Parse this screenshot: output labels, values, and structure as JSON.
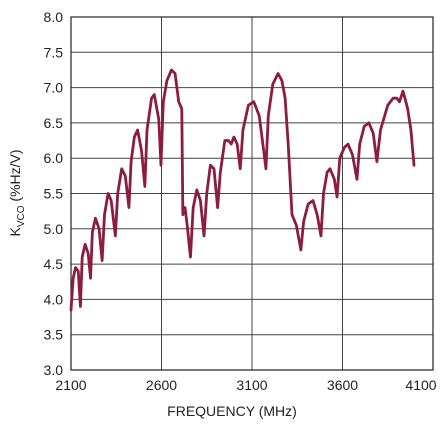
{
  "chart_data": {
    "type": "line",
    "x_label": "FREQUENCY (MHz)",
    "y_label": {
      "main": "K",
      "sub": "VCO",
      "rest": " (%Hz/V)"
    },
    "xlim": [
      2100,
      4100
    ],
    "xticks": [
      2100,
      2600,
      3100,
      3600,
      4100
    ],
    "ylim": [
      3,
      8
    ],
    "yticks": [
      {
        "value": 3,
        "label": "3.0"
      },
      {
        "value": 3.5,
        "label": "3.5"
      },
      {
        "value": 4,
        "label": "4.0"
      },
      {
        "value": 4.5,
        "label": "4.5"
      },
      {
        "value": 5,
        "label": "5.0"
      },
      {
        "value": 5.5,
        "label": "5.5"
      },
      {
        "value": 6,
        "label": "6.0"
      },
      {
        "value": 6.5,
        "label": "6.5"
      },
      {
        "value": 7,
        "label": "7.0"
      },
      {
        "value": 7.5,
        "label": "7.5"
      },
      {
        "value": 8,
        "label": "8.0"
      }
    ],
    "grid": true,
    "color": "#8c1d40",
    "x": [
      2100,
      2112,
      2125,
      2140,
      2152,
      2162,
      2178,
      2195,
      2208,
      2218,
      2235,
      2255,
      2272,
      2285,
      2305,
      2322,
      2345,
      2358,
      2380,
      2400,
      2420,
      2432,
      2450,
      2468,
      2490,
      2508,
      2520,
      2545,
      2560,
      2585,
      2597,
      2610,
      2630,
      2655,
      2675,
      2695,
      2712,
      2718,
      2730,
      2742,
      2760,
      2775,
      2795,
      2815,
      2835,
      2850,
      2870,
      2890,
      2910,
      2925,
      2950,
      2970,
      2985,
      3000,
      3018,
      3035,
      3050,
      3080,
      3110,
      3140,
      3165,
      3177,
      3190,
      3215,
      3244,
      3265,
      3283,
      3300,
      3321,
      3345,
      3370,
      3385,
      3410,
      3437,
      3460,
      3481,
      3495,
      3515,
      3531,
      3555,
      3570,
      3585,
      3610,
      3630,
      3655,
      3680,
      3695,
      3720,
      3746,
      3770,
      3790,
      3810,
      3850,
      3880,
      3900,
      3915,
      3934,
      3945,
      3960,
      3978,
      3995
    ],
    "values": [
      3.85,
      4.3,
      4.45,
      4.4,
      3.9,
      4.6,
      4.78,
      4.65,
      4.3,
      4.95,
      5.15,
      5.0,
      4.55,
      5.2,
      5.5,
      5.4,
      4.9,
      5.5,
      5.85,
      5.75,
      5.3,
      5.95,
      6.3,
      6.4,
      6.1,
      5.6,
      6.4,
      6.85,
      6.9,
      6.55,
      5.9,
      6.8,
      7.1,
      7.25,
      7.2,
      6.8,
      6.7,
      5.2,
      5.3,
      5.05,
      4.6,
      5.3,
      5.55,
      5.4,
      4.9,
      5.5,
      5.9,
      5.85,
      5.3,
      5.8,
      6.25,
      6.25,
      6.2,
      6.3,
      6.2,
      5.85,
      6.4,
      6.75,
      6.8,
      6.6,
      6.1,
      5.85,
      6.6,
      7.05,
      7.2,
      7.1,
      6.85,
      6.2,
      5.2,
      5.05,
      4.7,
      5.1,
      5.35,
      5.4,
      5.2,
      4.9,
      5.5,
      5.8,
      5.85,
      5.7,
      5.45,
      6.0,
      6.15,
      6.2,
      6.05,
      5.7,
      6.2,
      6.45,
      6.5,
      6.35,
      5.95,
      6.4,
      6.75,
      6.85,
      6.85,
      6.8,
      6.95,
      6.85,
      6.7,
      6.4,
      5.9
    ]
  }
}
